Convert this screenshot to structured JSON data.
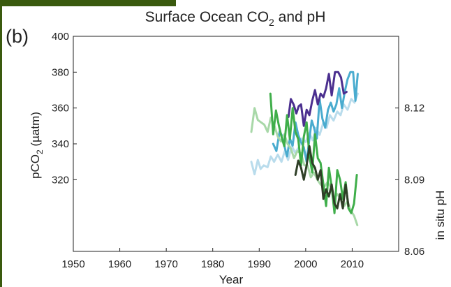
{
  "figure": {
    "panel_label": "(b)",
    "frame_color": "#3a5a0e"
  },
  "chart_data": {
    "type": "line",
    "title": "Surface Ocean CO2 and pH",
    "title_main": "Surface Ocean CO",
    "title_sub": "2",
    "title_tail": " and pH",
    "xlabel": "Year",
    "x_ticks": [
      1950,
      1960,
      1970,
      1980,
      1990,
      2000,
      2010
    ],
    "xlim": [
      1950,
      2020
    ],
    "y_left": {
      "label": "pCO2 (µatm)",
      "label_main": "pCO",
      "label_sub": "2",
      "label_tail": " (µatm)",
      "ticks": [
        320,
        340,
        360,
        380,
        400
      ],
      "range": [
        280,
        400
      ]
    },
    "y_right": {
      "label": "in situ pH",
      "ticks": [
        "8.06",
        "8.09",
        "8.12"
      ],
      "range": [
        8.06,
        8.15
      ]
    },
    "grid": false,
    "series": [
      {
        "axis": "left",
        "color": "#b9dcec",
        "x": [
          1988.3,
          1989,
          1989.7,
          1990.3,
          1991,
          1991.8,
          1992.5,
          1993.2,
          1994,
          1994.8,
          1995.5,
          1996.2,
          1997,
          1997.7,
          1998.5,
          1999.2,
          2000,
          2000.8,
          2001.5,
          2002.2,
          2003,
          2003.8,
          2004.5,
          2005.2,
          2006,
          2006.8,
          2007.5,
          2008.2,
          2009,
          2009.8,
          2010.5,
          2011.2
        ],
        "y": [
          330,
          323,
          331,
          326,
          328,
          327,
          333,
          330,
          334,
          330,
          336,
          331,
          339,
          335,
          338,
          343,
          341,
          346,
          342,
          349,
          345,
          352,
          349,
          356,
          353,
          358,
          356,
          362,
          359,
          365,
          363,
          368
        ]
      },
      {
        "axis": "left",
        "color": "#4aaccf",
        "x": [
          1993,
          1993.7,
          1994.4,
          1995,
          1995.5,
          1996,
          1996.6,
          1997.2,
          1997.8,
          1998.4,
          1999,
          1999.6,
          2000.2,
          2000.8,
          2001.3,
          2001.8,
          2002.4,
          2003,
          2003.6,
          2004.2,
          2004.8,
          2005.4,
          2006,
          2006.6,
          2007.2,
          2007.8,
          2008.4,
          2009,
          2009.6,
          2010.2,
          2010.7,
          2011.2
        ],
        "y": [
          340,
          336,
          347,
          344,
          338,
          333,
          343,
          339,
          352,
          345,
          341,
          338,
          330,
          343,
          353,
          349,
          343,
          365,
          354,
          349,
          359,
          363,
          358,
          362,
          371,
          360,
          369,
          376,
          380,
          380,
          364,
          379
        ]
      },
      {
        "axis": "left",
        "color": "#4b2f8f",
        "x": [
          1996.3,
          1996.8,
          1997.4,
          1998,
          1998.5,
          1999,
          1999.6,
          2000.2,
          2000.8,
          2001.4,
          2002,
          2002.6,
          2003.2,
          2003.8,
          2004.4,
          2005,
          2005.6,
          2006.3,
          2007,
          2007.6,
          2008.2,
          2008.8
        ],
        "y": [
          355,
          365,
          362,
          357,
          361,
          362,
          350,
          359,
          356,
          364,
          370,
          362,
          368,
          366,
          371,
          379,
          367,
          380,
          380,
          377,
          368,
          369
        ]
      },
      {
        "axis": "right",
        "color": "#a8d8a8",
        "x": [
          1988.3,
          1989,
          1989.7,
          1990.4,
          1991.1,
          1991.8,
          1992.5,
          1993.2,
          1994,
          1994.7,
          1995.4,
          1996.1,
          1996.8,
          1997.5,
          1998.2,
          1999,
          1999.7,
          2000.4,
          2001.1,
          2001.8,
          2002.5,
          2003.2,
          2004,
          2004.7,
          2005.4,
          2006.1,
          2006.8,
          2007.5,
          2008.3,
          2009,
          2009.7,
          2010.4,
          2011.1
        ],
        "y": [
          8.11,
          8.12,
          8.115,
          8.114,
          8.113,
          8.11,
          8.116,
          8.113,
          8.108,
          8.106,
          8.109,
          8.105,
          8.103,
          8.099,
          8.102,
          8.101,
          8.096,
          8.096,
          8.091,
          8.093,
          8.09,
          8.088,
          8.087,
          8.089,
          8.087,
          8.082,
          8.084,
          8.082,
          8.079,
          8.081,
          8.077,
          8.075,
          8.071
        ]
      },
      {
        "axis": "right",
        "color": "#3fae4a",
        "x": [
          1992.4,
          1993,
          1993.6,
          1994.2,
          1994.8,
          1995.4,
          1996,
          1996.6,
          1997.2,
          1997.8,
          1998.4,
          1999,
          1999.6,
          2000.2,
          2000.8,
          2001.4,
          2002,
          2002.6,
          2003.2,
          2003.8,
          2004.4,
          2005,
          2005.6,
          2006.2,
          2006.8,
          2007.4,
          2008,
          2008.6,
          2009.2,
          2009.8,
          2010.4,
          2011
        ],
        "y": [
          8.126,
          8.109,
          8.119,
          8.113,
          8.108,
          8.104,
          8.117,
          8.107,
          8.12,
          8.11,
          8.107,
          8.096,
          8.108,
          8.114,
          8.1,
          8.093,
          8.109,
          8.099,
          8.097,
          8.088,
          8.079,
          8.095,
          8.087,
          8.076,
          8.094,
          8.09,
          8.082,
          8.089,
          8.078,
          8.076,
          8.08,
          8.092
        ]
      },
      {
        "axis": "right",
        "color": "#2f3f27",
        "x": [
          1997.8,
          1998.4,
          1999,
          1999.6,
          2000.2,
          2000.8,
          2001.4,
          2002,
          2002.6,
          2003.2,
          2003.8,
          2004.4,
          2005,
          2005.6,
          2006.2,
          2006.8,
          2007.4,
          2008,
          2008.6,
          2009.2
        ],
        "y": [
          8.092,
          8.098,
          8.095,
          8.09,
          8.096,
          8.104,
          8.097,
          8.095,
          8.09,
          8.094,
          8.082,
          8.086,
          8.083,
          8.088,
          8.08,
          8.078,
          8.084,
          8.078,
          8.088,
          8.079
        ]
      }
    ]
  }
}
